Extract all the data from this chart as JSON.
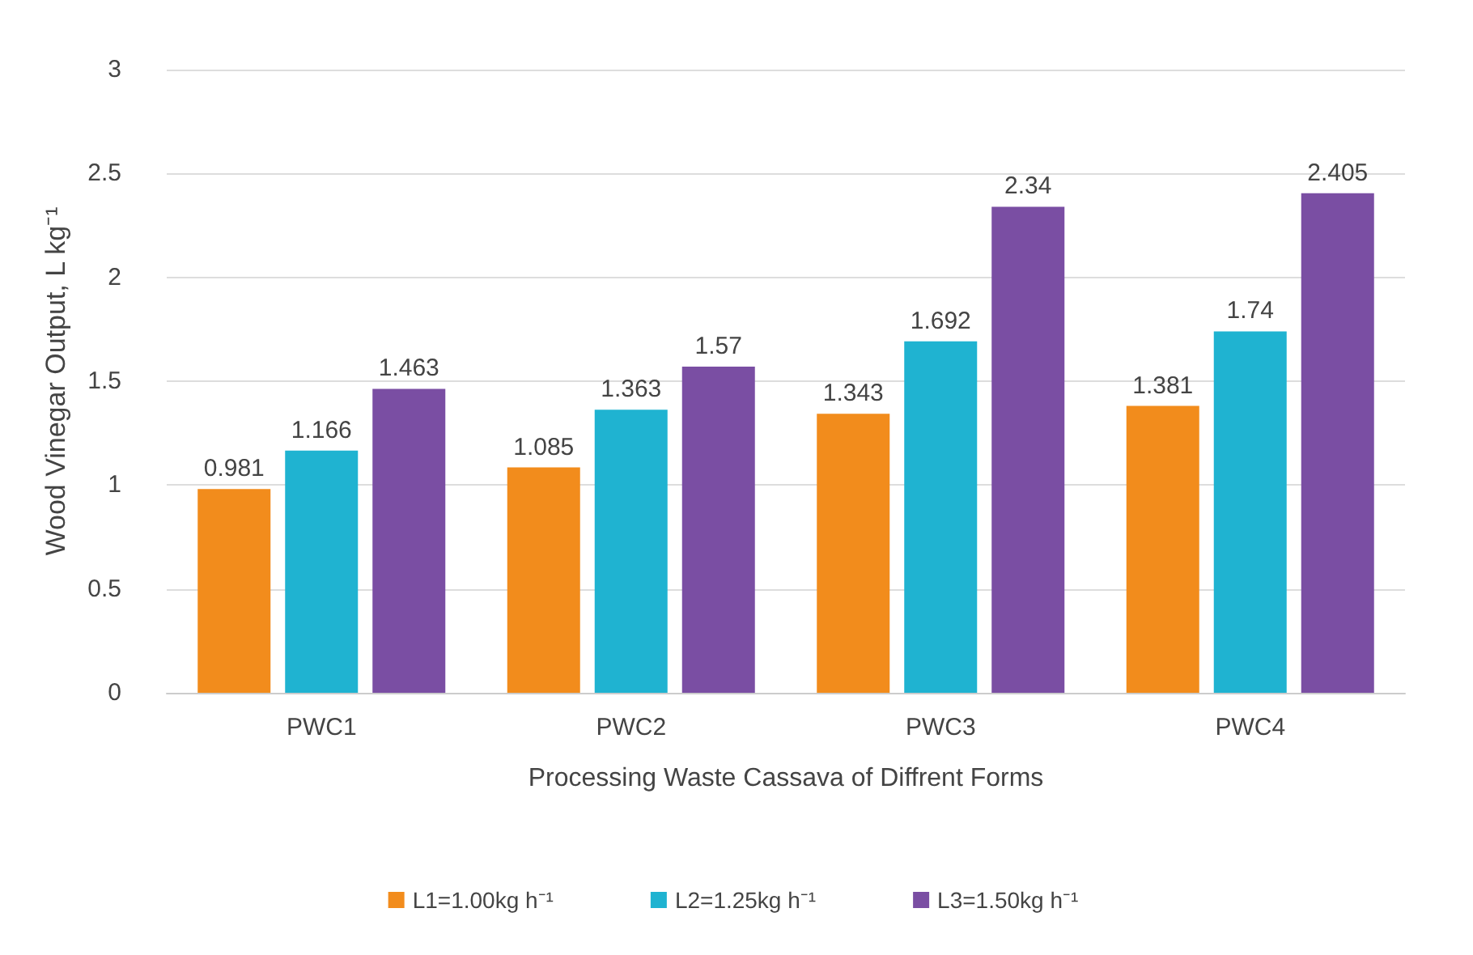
{
  "chart_data": {
    "type": "bar",
    "xlabel": "Processing Waste Cassava of Diffrent Forms",
    "ylabel": "Wood Vinegar Output, L kg⁻¹",
    "categories": [
      "PWC1",
      "PWC2",
      "PWC3",
      "PWC4"
    ],
    "series": [
      {
        "name": "L1=1.00kg h⁻¹",
        "color": "#f28c1c",
        "values": [
          0.981,
          1.085,
          1.343,
          1.381
        ]
      },
      {
        "name": "L2=1.25kg h⁻¹",
        "color": "#1fb3d1",
        "values": [
          1.166,
          1.363,
          1.692,
          1.74
        ]
      },
      {
        "name": "L3=1.50kg h⁻¹",
        "color": "#7a4ea3",
        "values": [
          1.463,
          1.57,
          2.34,
          2.405
        ]
      }
    ],
    "ylim": [
      0,
      3
    ],
    "yticks": [
      0,
      0.5,
      1,
      1.5,
      2,
      2.5,
      3
    ],
    "grid": "y",
    "legend": "bottom",
    "data_labels": true
  }
}
